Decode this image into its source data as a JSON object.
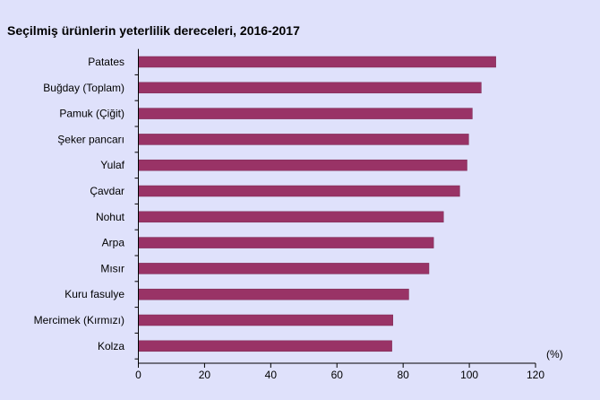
{
  "chart_data": {
    "type": "bar",
    "orientation": "horizontal",
    "title": "Seçilmiş ürünlerin yeterlilik dereceleri, 2016-2017",
    "unit_label": "(%)",
    "categories": [
      "Patates",
      "Buğday (Toplam)",
      "Pamuk (Çiğit)",
      "Şeker pancarı",
      "Yulaf",
      "Çavdar",
      "Nohut",
      "Arpa",
      "Mısır",
      "Kuru fasulye",
      "Mercimek (Kırmızı)",
      "Kolza"
    ],
    "values": [
      108.0,
      103.6,
      100.9,
      99.8,
      99.3,
      97.1,
      92.2,
      89.2,
      87.8,
      81.7,
      76.9,
      76.6
    ],
    "xlim": [
      0,
      120
    ],
    "xticks": [
      "0",
      "20",
      "40",
      "60",
      "80",
      "100",
      "120"
    ],
    "grid": false,
    "bar_color": "#993366"
  }
}
